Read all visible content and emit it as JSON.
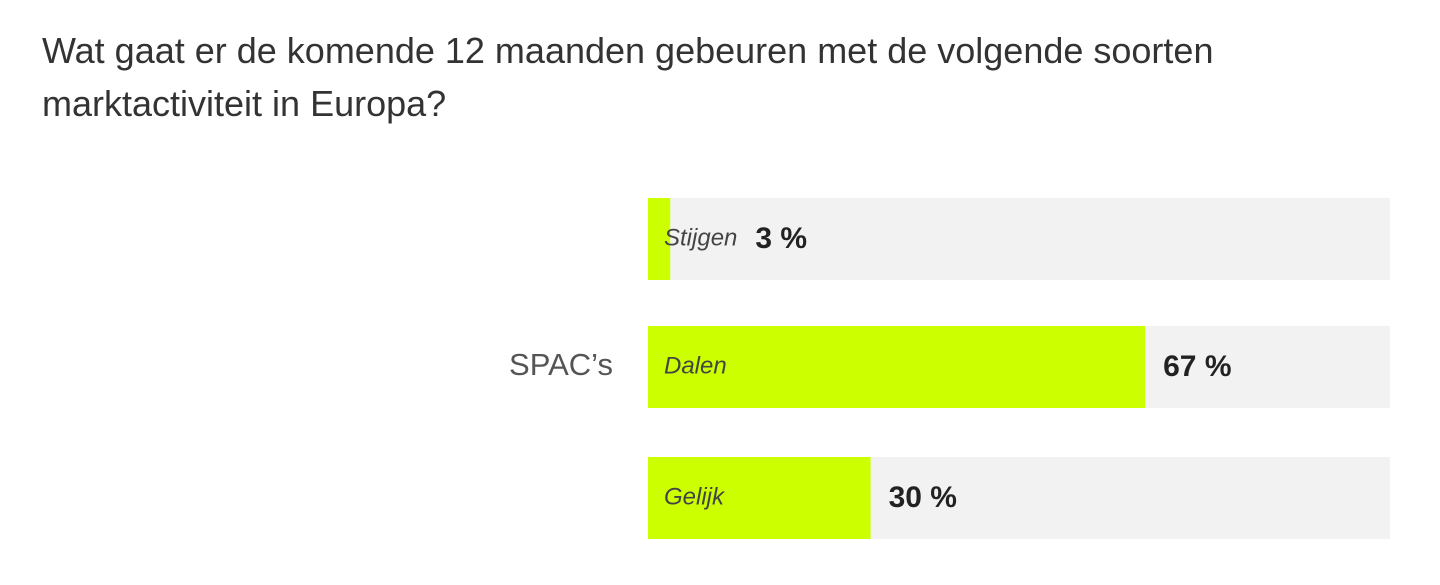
{
  "chart_data": {
    "type": "bar",
    "orientation": "horizontal",
    "title": "Wat gaat er de komende 12 maanden gebeuren met de volgende soorten marktactiviteit in Europa?",
    "group": "SPAC’s",
    "categories": [
      "Stijgen",
      "Dalen",
      "Gelijk"
    ],
    "values": [
      3,
      67,
      30
    ],
    "value_labels": [
      "3 %",
      "67 %",
      "30 %"
    ],
    "color": "#ccff00",
    "track_color": "#f2f2f2",
    "xlim": [
      0,
      100
    ]
  }
}
